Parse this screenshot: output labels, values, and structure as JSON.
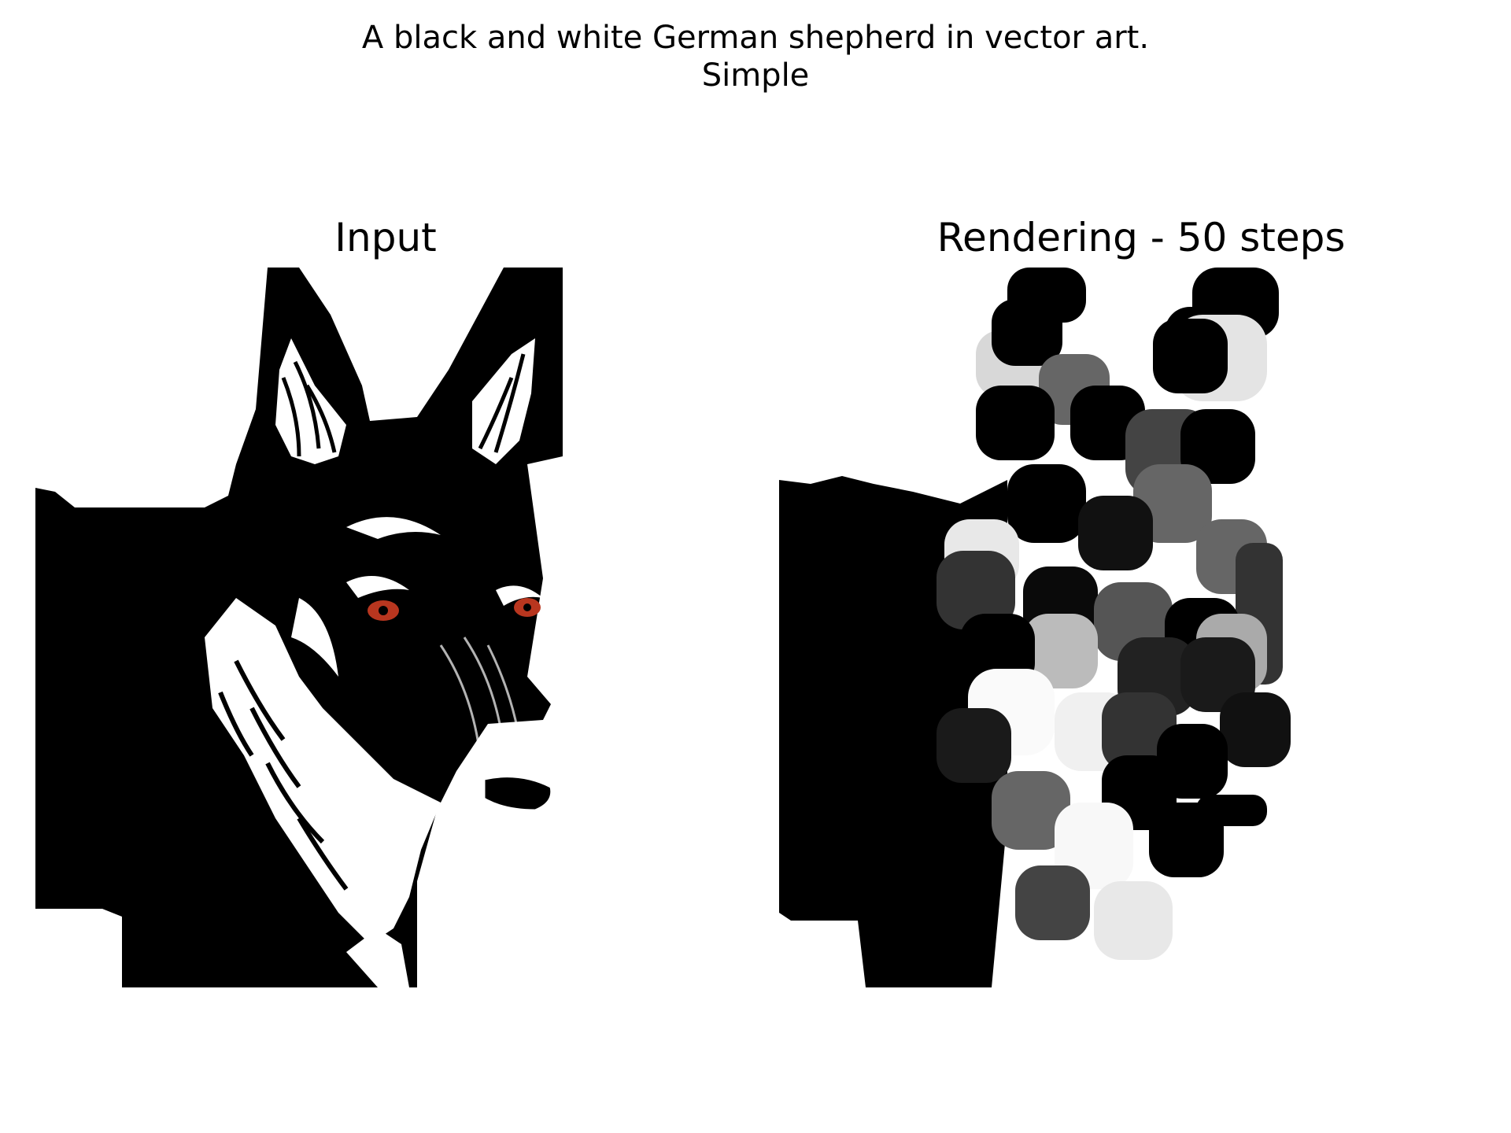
{
  "figure": {
    "title_line_1": "A black and white German shepherd in vector art.",
    "title_line_2": "Simple"
  },
  "panels": {
    "left": {
      "title": "Input"
    },
    "right": {
      "title": "Rendering - 50 steps"
    }
  },
  "colors": {
    "background": "#ffffff",
    "ink": "#000000",
    "eye": "#b8361f"
  }
}
